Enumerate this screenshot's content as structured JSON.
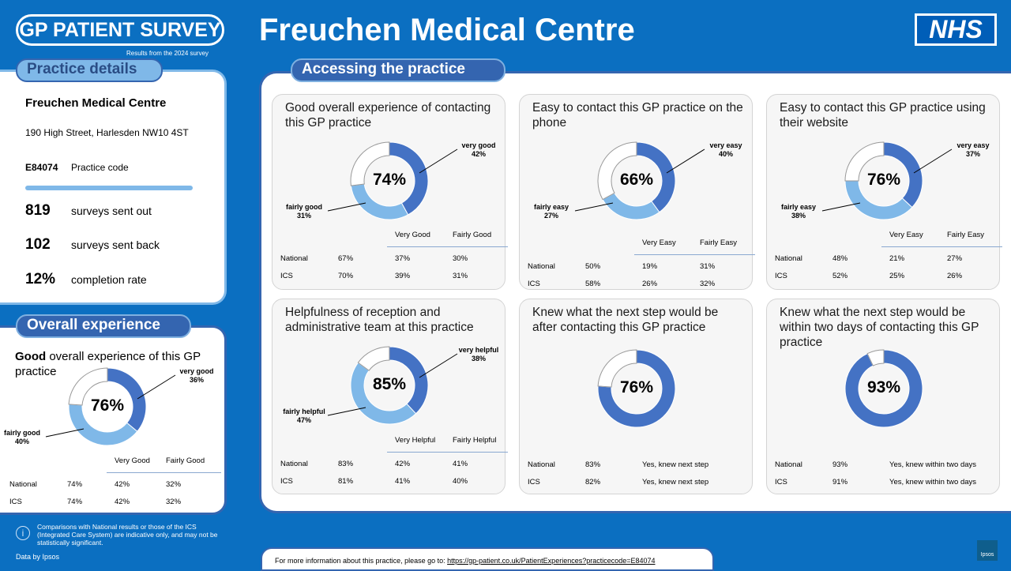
{
  "header": {
    "logo": "GP PATIENT SURVEY",
    "subtitle": "Results from the 2024 survey",
    "title": "Freuchen Medical Centre",
    "nhs_logo": "NHS"
  },
  "practice": {
    "section": "Practice details",
    "name": "Freuchen Medical Centre",
    "address": "190 High Street, Harlesden  NW10 4ST",
    "code": "E84074",
    "code_label": "Practice code",
    "stats": [
      {
        "value": "819",
        "label": "surveys sent out"
      },
      {
        "value": "102",
        "label": "surveys sent back"
      },
      {
        "value": "12%",
        "label": "completion rate"
      }
    ]
  },
  "overall": {
    "section": "Overall experience",
    "title_bold": "Good",
    "title_rest": " overall experience of this GP practice",
    "total": "76%",
    "very": 36,
    "fairly": 40,
    "very_label": "very good",
    "very_pct": "36%",
    "fairly_label": "fairly good",
    "fairly_pct": "40%",
    "cols": [
      "Very Good",
      "Fairly Good"
    ],
    "rows": [
      {
        "name": "National",
        "total": "74%",
        "a": "42%",
        "b": "32%"
      },
      {
        "name": "ICS",
        "total": "74%",
        "a": "42%",
        "b": "32%"
      }
    ]
  },
  "accessing": {
    "section": "Accessing the practice",
    "cards": [
      {
        "title": "Good overall experience of contacting this GP practice",
        "total": "74%",
        "very": 42,
        "fairly": 31,
        "very_label": "very good",
        "very_pct": "42%",
        "fairly_label": "fairly good",
        "fairly_pct": "31%",
        "cols": [
          "Very Good",
          "Fairly Good"
        ],
        "rows": [
          {
            "name": "National",
            "total": "67%",
            "a": "37%",
            "b": "30%"
          },
          {
            "name": "ICS",
            "total": "70%",
            "a": "39%",
            "b": "31%"
          }
        ]
      },
      {
        "title": "Easy to contact this GP practice on the phone",
        "total": "66%",
        "very": 40,
        "fairly": 27,
        "very_label": "very easy",
        "very_pct": "40%",
        "fairly_label": "fairly easy",
        "fairly_pct": "27%",
        "cols": [
          "Very Easy",
          "Fairly Easy"
        ],
        "rows": [
          {
            "name": "National",
            "total": "50%",
            "a": "19%",
            "b": "31%"
          },
          {
            "name": "ICS",
            "total": "58%",
            "a": "26%",
            "b": "32%"
          }
        ]
      },
      {
        "title": "Easy to contact this GP practice using their website",
        "total": "76%",
        "very": 37,
        "fairly": 38,
        "very_label": "very easy",
        "very_pct": "37%",
        "fairly_label": "fairly easy",
        "fairly_pct": "38%",
        "cols": [
          "Very Easy",
          "Fairly Easy"
        ],
        "rows": [
          {
            "name": "National",
            "total": "48%",
            "a": "21%",
            "b": "27%"
          },
          {
            "name": "ICS",
            "total": "52%",
            "a": "25%",
            "b": "26%"
          }
        ]
      },
      {
        "title": "Helpfulness  of reception and administrative team at this practice",
        "total": "85%",
        "very": 38,
        "fairly": 47,
        "very_label": "very helpful",
        "very_pct": "38%",
        "fairly_label": "fairly helpful",
        "fairly_pct": "47%",
        "cols": [
          "Very Helpful",
          "Fairly Helpful"
        ],
        "rows": [
          {
            "name": "National",
            "total": "83%",
            "a": "42%",
            "b": "41%"
          },
          {
            "name": "ICS",
            "total": "81%",
            "a": "41%",
            "b": "40%"
          }
        ]
      },
      {
        "title": "Knew what the next step would be after contacting this GP practice",
        "total": "76%",
        "very": 76,
        "fairly": 0,
        "rows": [
          {
            "name": "National",
            "total": "83%",
            "a": "Yes, knew next step"
          },
          {
            "name": "ICS",
            "total": "82%",
            "a": "Yes, knew next step"
          }
        ]
      },
      {
        "title": "Knew what the next step would be within two days of contacting this GP practice",
        "total": "93%",
        "very": 93,
        "fairly": 0,
        "rows": [
          {
            "name": "National",
            "total": "93%",
            "a": "Yes, knew within two days"
          },
          {
            "name": "ICS",
            "total": "91%",
            "a": "Yes, knew within two days"
          }
        ]
      }
    ]
  },
  "footer": {
    "note": "Comparisons with National results or those of the ICS (Integrated Care System) are indicative only, and may not be statistically significant.",
    "data_by": "Data by Ipsos",
    "more_info": "For more information about this practice, please go to: ",
    "link": "https://gp-patient.co.uk/PatientExperiences?practicecode=E84074",
    "ipsos": "Ipsos"
  },
  "colors": {
    "very": "#4472c4",
    "fairly": "#7fb8e8",
    "blue": "#0b6fc1"
  }
}
